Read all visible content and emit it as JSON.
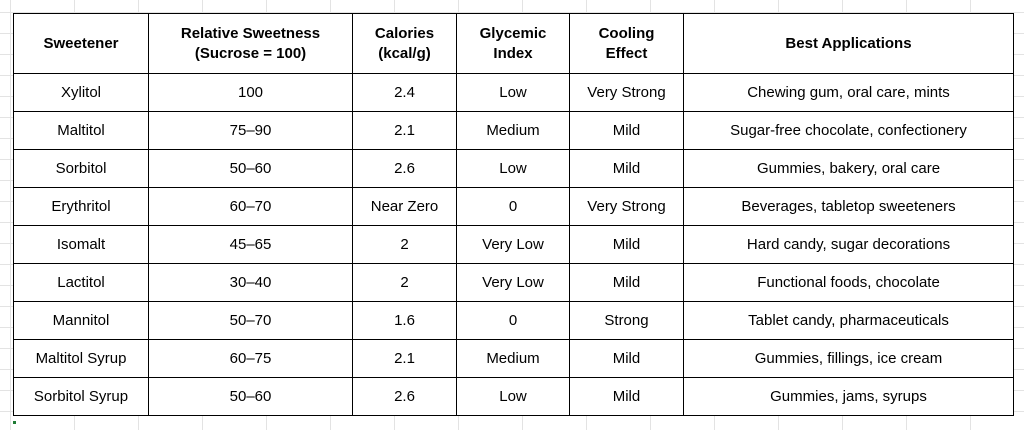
{
  "table": {
    "headers": [
      {
        "lines": [
          "Sweetener"
        ]
      },
      {
        "lines": [
          "Relative Sweetness",
          "(Sucrose = 100)"
        ]
      },
      {
        "lines": [
          "Calories",
          "(kcal/g)"
        ]
      },
      {
        "lines": [
          "Glycemic",
          "Index"
        ]
      },
      {
        "lines": [
          "Cooling",
          "Effect"
        ]
      },
      {
        "lines": [
          "Best Applications"
        ]
      }
    ],
    "rows": [
      [
        "Xylitol",
        "100",
        "2.4",
        "Low",
        "Very Strong",
        "Chewing gum, oral care, mints"
      ],
      [
        "Maltitol",
        "75–90",
        "2.1",
        "Medium",
        "Mild",
        "Sugar-free chocolate, confectionery"
      ],
      [
        "Sorbitol",
        "50–60",
        "2.6",
        "Low",
        "Mild",
        "Gummies, bakery, oral care"
      ],
      [
        "Erythritol",
        "60–70",
        "Near Zero",
        "0",
        "Very Strong",
        "Beverages, tabletop sweeteners"
      ],
      [
        "Isomalt",
        "45–65",
        "2",
        "Very Low",
        "Mild",
        "Hard candy, sugar decorations"
      ],
      [
        "Lactitol",
        "30–40",
        "2",
        "Very Low",
        "Mild",
        "Functional foods, chocolate"
      ],
      [
        "Mannitol",
        "50–70",
        "1.6",
        "0",
        "Strong",
        "Tablet candy, pharmaceuticals"
      ],
      [
        "Maltitol Syrup",
        "60–75",
        "2.1",
        "Medium",
        "Mild",
        "Gummies, fillings, ice cream"
      ],
      [
        "Sorbitol Syrup",
        "50–60",
        "2.6",
        "Low",
        "Mild",
        "Gummies, jams, syrups"
      ]
    ]
  },
  "colors": {
    "border": "#000000",
    "background": "#ffffff",
    "sheet_grid": "#e3e3e3",
    "selection_mark": "#1e7b34"
  }
}
